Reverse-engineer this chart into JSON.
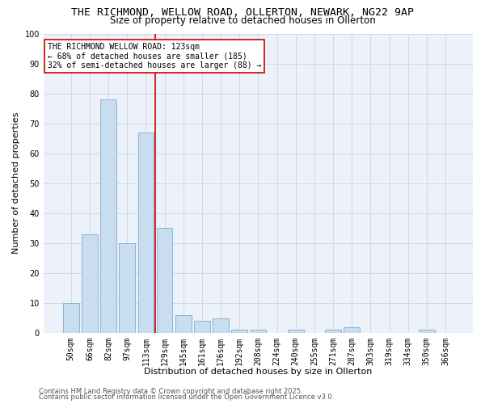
{
  "title_line1": "THE RICHMOND, WELLOW ROAD, OLLERTON, NEWARK, NG22 9AP",
  "title_line2": "Size of property relative to detached houses in Ollerton",
  "xlabel": "Distribution of detached houses by size in Ollerton",
  "ylabel": "Number of detached properties",
  "categories": [
    "50sqm",
    "66sqm",
    "82sqm",
    "97sqm",
    "113sqm",
    "129sqm",
    "145sqm",
    "161sqm",
    "176sqm",
    "192sqm",
    "208sqm",
    "224sqm",
    "240sqm",
    "255sqm",
    "271sqm",
    "287sqm",
    "303sqm",
    "319sqm",
    "334sqm",
    "350sqm",
    "366sqm"
  ],
  "values": [
    10,
    33,
    78,
    30,
    67,
    35,
    6,
    4,
    5,
    1,
    1,
    0,
    1,
    0,
    1,
    2,
    0,
    0,
    0,
    1,
    0
  ],
  "bar_color": "#c9ddf0",
  "bar_edge_color": "#8ab4d4",
  "vline_color": "#cc0000",
  "annotation_text": "THE RICHMOND WELLOW ROAD: 123sqm\n← 68% of detached houses are smaller (185)\n32% of semi-detached houses are larger (88) →",
  "annotation_box_color": "#ffffff",
  "annotation_box_edge": "#cc0000",
  "ylim": [
    0,
    100
  ],
  "yticks": [
    0,
    10,
    20,
    30,
    40,
    50,
    60,
    70,
    80,
    90,
    100
  ],
  "grid_color": "#cdd8ec",
  "background_color": "#edf1fa",
  "footer_line1": "Contains HM Land Registry data © Crown copyright and database right 2025.",
  "footer_line2": "Contains public sector information licensed under the Open Government Licence v3.0.",
  "title_fontsize": 9.5,
  "subtitle_fontsize": 8.5,
  "axis_label_fontsize": 8,
  "tick_fontsize": 7,
  "annotation_fontsize": 7,
  "footer_fontsize": 6
}
